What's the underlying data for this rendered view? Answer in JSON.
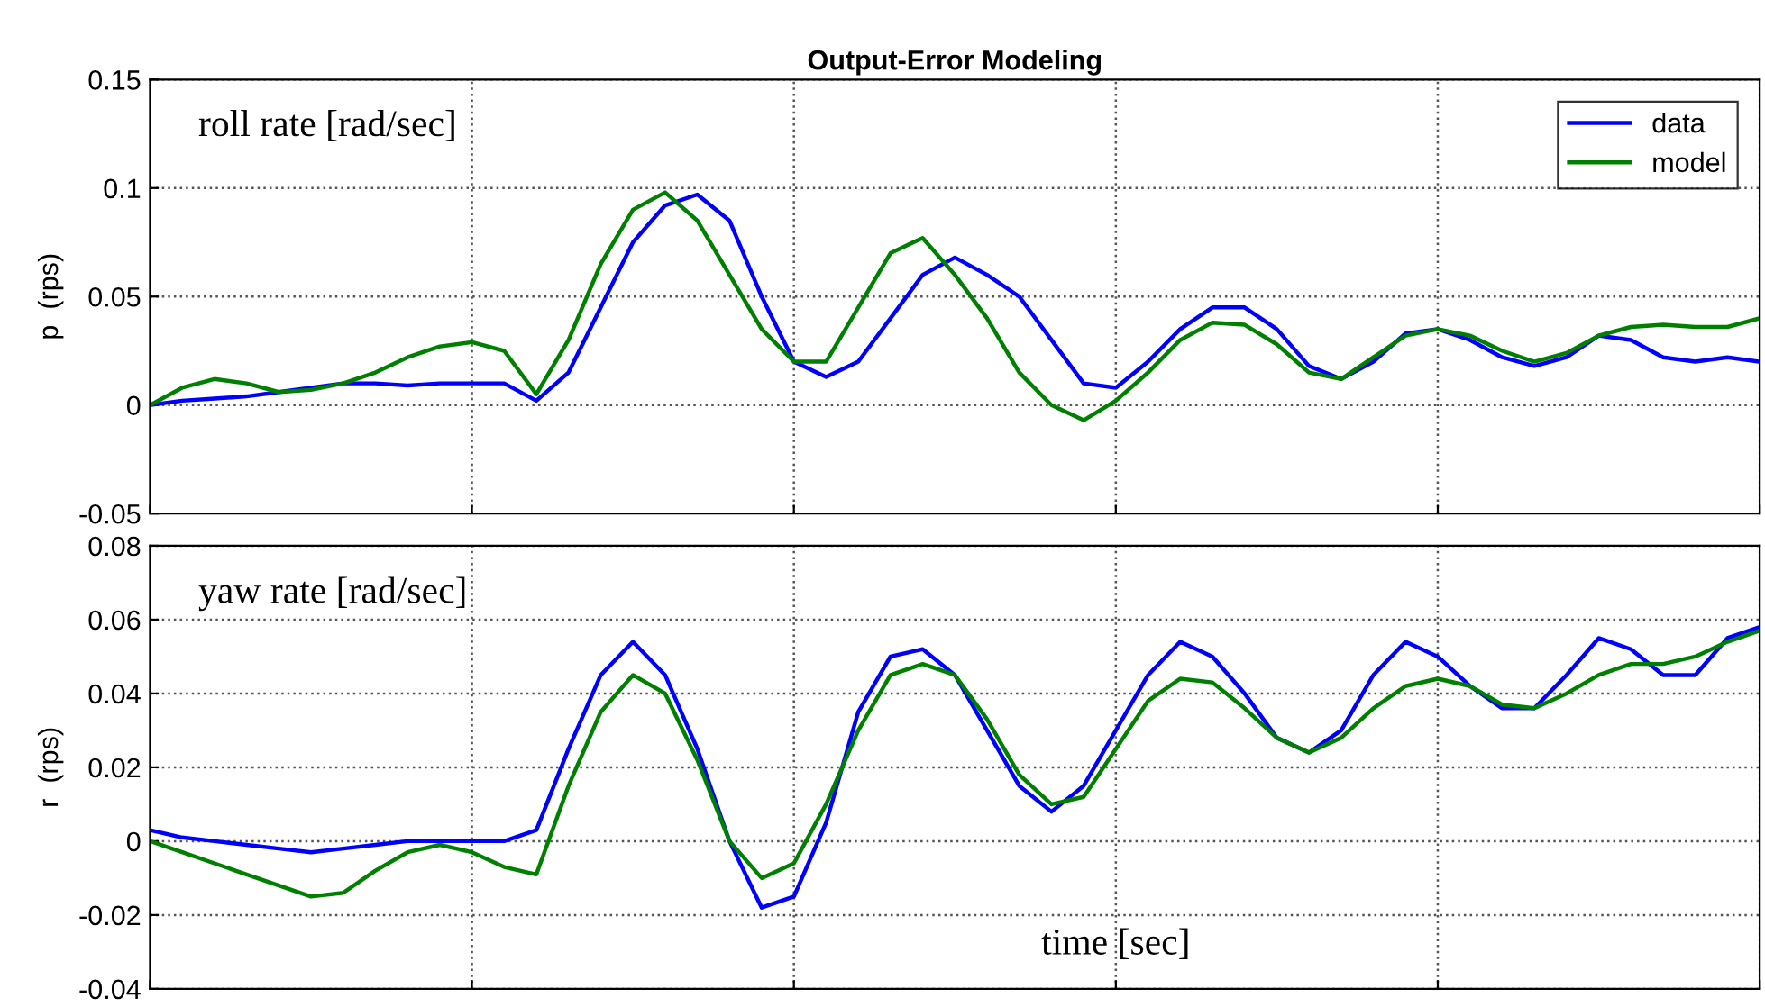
{
  "chart_data": [
    {
      "type": "line",
      "title": "Output-Error Modeling",
      "ylabel": "p  (rps)",
      "annotations": [
        "roll rate [rad/sec]"
      ],
      "categories": [
        null,
        null,
        null,
        null,
        null,
        null,
        null,
        null,
        null,
        null,
        null,
        null,
        null,
        null,
        null,
        null,
        null,
        null,
        null,
        null,
        null,
        null,
        null,
        null,
        null,
        null,
        null,
        null,
        null,
        null,
        null,
        null,
        null,
        null,
        null,
        null,
        null,
        null,
        null,
        null,
        null,
        null,
        null,
        null,
        null,
        null,
        null,
        null,
        null,
        null,
        null
      ],
      "series": [
        {
          "name": "data",
          "color": "#0000ff",
          "values": [
            0.0,
            0.002,
            0.003,
            0.004,
            0.006,
            0.008,
            0.01,
            0.01,
            0.009,
            0.01,
            0.01,
            0.01,
            0.002,
            0.015,
            0.045,
            0.075,
            0.092,
            0.097,
            0.085,
            0.05,
            0.02,
            0.013,
            0.02,
            0.04,
            0.06,
            0.068,
            0.06,
            0.05,
            0.03,
            0.01,
            0.008,
            0.02,
            0.035,
            0.045,
            0.045,
            0.035,
            0.018,
            0.012,
            0.02,
            0.033,
            0.035,
            0.03,
            0.022,
            0.018,
            0.022,
            0.032,
            0.03,
            0.022,
            0.02,
            0.022,
            0.02
          ]
        },
        {
          "name": "model",
          "color": "#008000",
          "values": [
            0.0,
            0.008,
            0.012,
            0.01,
            0.006,
            0.007,
            0.01,
            0.015,
            0.022,
            0.027,
            0.029,
            0.025,
            0.005,
            0.03,
            0.065,
            0.09,
            0.098,
            0.085,
            0.06,
            0.035,
            0.02,
            0.02,
            0.045,
            0.07,
            0.077,
            0.06,
            0.04,
            0.015,
            0.0,
            -0.007,
            0.002,
            0.015,
            0.03,
            0.038,
            0.037,
            0.028,
            0.015,
            0.012,
            0.022,
            0.032,
            0.035,
            0.032,
            0.025,
            0.02,
            0.024,
            0.032,
            0.036,
            0.037,
            0.036,
            0.036,
            0.04
          ]
        }
      ],
      "ylim": [
        -0.05,
        0.15
      ],
      "yticks": [
        -0.05,
        0,
        0.05,
        0.1,
        0.15
      ],
      "grid": true,
      "legend": "top right",
      "tick_labels": "y"
    },
    {
      "type": "line",
      "ylabel": "r  (rps)",
      "annotations": [
        "yaw rate [rad/sec]",
        "time [sec]"
      ],
      "categories": [
        null,
        null,
        null,
        null,
        null,
        null,
        null,
        null,
        null,
        null,
        null,
        null,
        null,
        null,
        null,
        null,
        null,
        null,
        null,
        null,
        null,
        null,
        null,
        null,
        null,
        null,
        null,
        null,
        null,
        null,
        null,
        null,
        null,
        null,
        null,
        null,
        null,
        null,
        null,
        null,
        null,
        null,
        null,
        null,
        null,
        null,
        null,
        null,
        null,
        null,
        null
      ],
      "series": [
        {
          "color": "#0000ff",
          "values": [
            0.003,
            0.001,
            0.0,
            -0.001,
            -0.002,
            -0.003,
            -0.002,
            -0.001,
            0.0,
            0.0,
            0.0,
            0.0,
            0.003,
            0.025,
            0.045,
            0.054,
            0.045,
            0.025,
            0.0,
            -0.018,
            -0.015,
            0.005,
            0.035,
            0.05,
            0.052,
            0.045,
            0.03,
            0.015,
            0.008,
            0.015,
            0.03,
            0.045,
            0.054,
            0.05,
            0.04,
            0.028,
            0.024,
            0.03,
            0.045,
            0.054,
            0.05,
            0.042,
            0.036,
            0.036,
            0.045,
            0.055,
            0.052,
            0.045,
            0.045,
            0.055,
            0.058
          ]
        },
        {
          "color": "#008000",
          "values": [
            0.0,
            -0.003,
            -0.006,
            -0.009,
            -0.012,
            -0.015,
            -0.014,
            -0.008,
            -0.003,
            -0.001,
            -0.003,
            -0.007,
            -0.009,
            0.015,
            0.035,
            0.045,
            0.04,
            0.022,
            0.0,
            -0.01,
            -0.006,
            0.01,
            0.03,
            0.045,
            0.048,
            0.045,
            0.033,
            0.018,
            0.01,
            0.012,
            0.025,
            0.038,
            0.044,
            0.043,
            0.036,
            0.028,
            0.024,
            0.028,
            0.036,
            0.042,
            0.044,
            0.042,
            0.037,
            0.036,
            0.04,
            0.045,
            0.048,
            0.048,
            0.05,
            0.054,
            0.057
          ]
        }
      ],
      "ylim": [
        -0.04,
        0.08
      ],
      "yticks": [
        -0.04,
        -0.02,
        0,
        0.02,
        0.04,
        0.06,
        0.08
      ],
      "grid": true,
      "tick_labels": "y"
    }
  ]
}
